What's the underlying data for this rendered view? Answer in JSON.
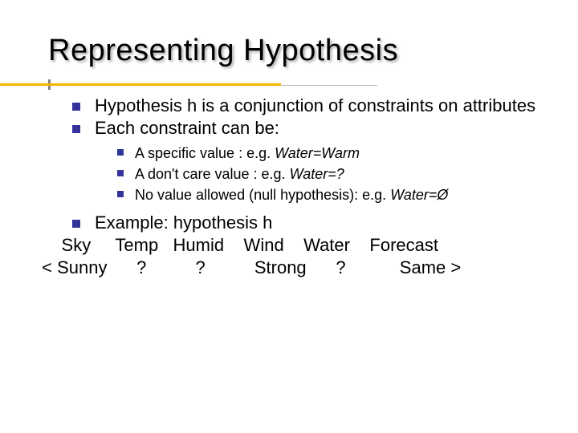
{
  "title": "Representing Hypothesis",
  "colors": {
    "bullet_square": "#333399",
    "underline_yellow": "#f2b600",
    "underline_gray": "#bfbfbf",
    "tick_gray": "#808080",
    "text": "#000000",
    "background": "#ffffff"
  },
  "typography": {
    "title_fontsize": 38,
    "body_fontsize": 22,
    "sub_fontsize": 18,
    "font_family": "Verdana"
  },
  "bullets_lvl1": [
    "Hypothesis h is a conjunction of constraints on attributes",
    "Each constraint can be:"
  ],
  "bullets_lvl2": [
    {
      "plain": "A specific value : e.g. ",
      "italic": "Water=Warm"
    },
    {
      "plain": "A don't care value : e.g. ",
      "italic": "Water=?"
    },
    {
      "plain": "No value allowed (null hypothesis): e.g. ",
      "italic": "Water=Ø"
    }
  ],
  "example": {
    "heading": "Example: hypothesis h",
    "attr_row": "     Sky     Temp   Humid    Wind    Water    Forecast",
    "val_row": " < Sunny      ?          ?          Strong      ?           Same >"
  }
}
